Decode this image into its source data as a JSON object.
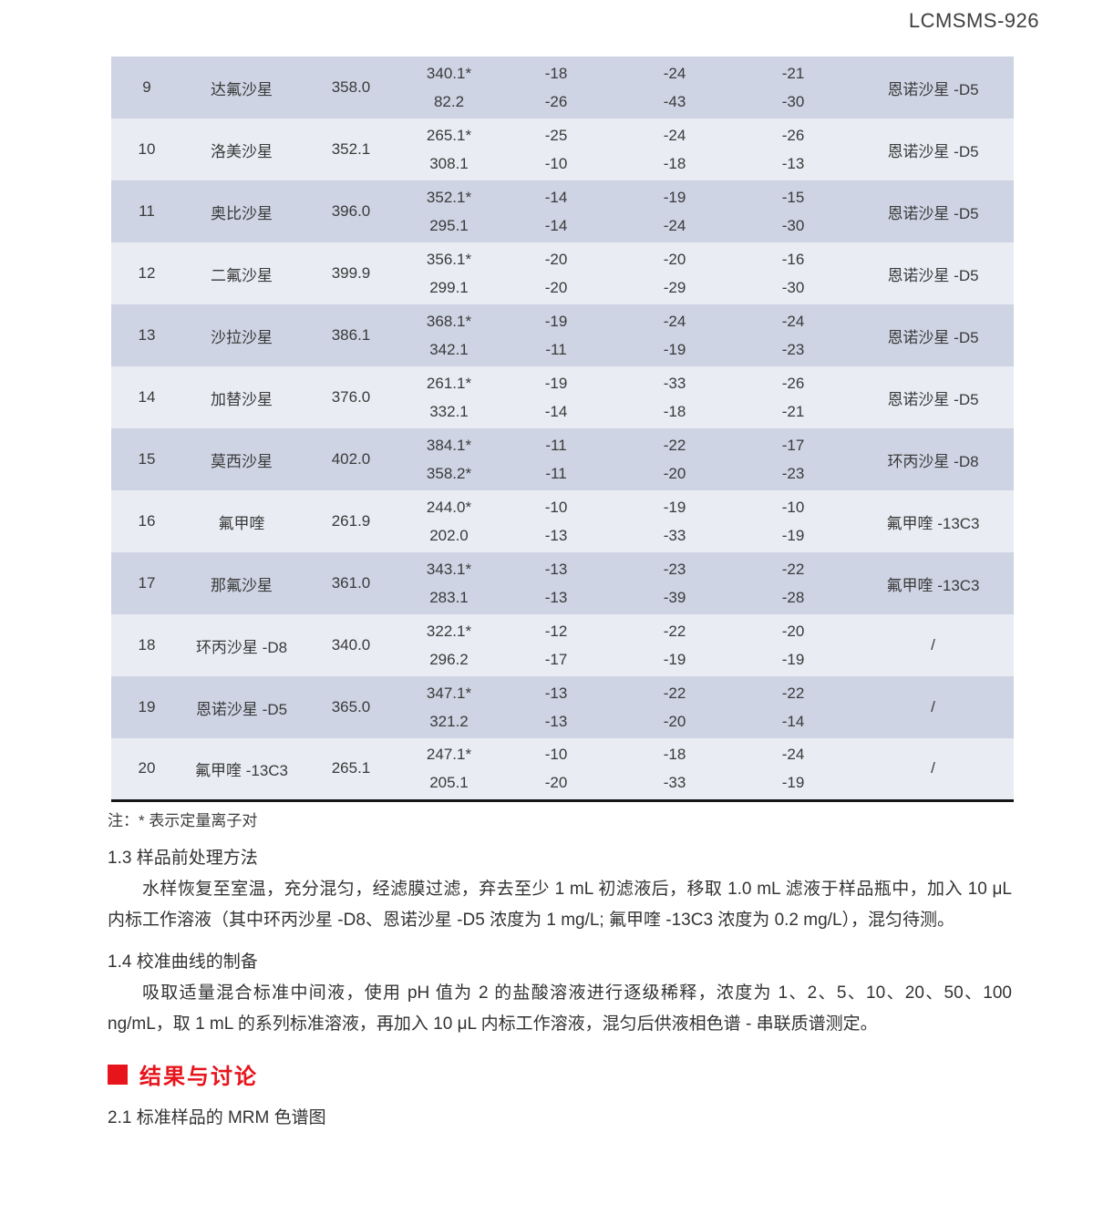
{
  "header": {
    "doc_code": "LCMSMS-926"
  },
  "table": {
    "rows": [
      {
        "no": "9",
        "name": "达氟沙星",
        "precursor": "358.0",
        "ions": [
          "340.1*",
          "82.2"
        ],
        "v1": [
          "-18",
          "-26"
        ],
        "v2": [
          "-24",
          "-43"
        ],
        "v3": [
          "-21",
          "-30"
        ],
        "internal_standard": "恩诺沙星 -D5"
      },
      {
        "no": "10",
        "name": "洛美沙星",
        "precursor": "352.1",
        "ions": [
          "265.1*",
          "308.1"
        ],
        "v1": [
          "-25",
          "-10"
        ],
        "v2": [
          "-24",
          "-18"
        ],
        "v3": [
          "-26",
          "-13"
        ],
        "internal_standard": "恩诺沙星 -D5"
      },
      {
        "no": "11",
        "name": "奥比沙星",
        "precursor": "396.0",
        "ions": [
          "352.1*",
          "295.1"
        ],
        "v1": [
          "-14",
          "-14"
        ],
        "v2": [
          "-19",
          "-24"
        ],
        "v3": [
          "-15",
          "-30"
        ],
        "internal_standard": "恩诺沙星 -D5"
      },
      {
        "no": "12",
        "name": "二氟沙星",
        "precursor": "399.9",
        "ions": [
          "356.1*",
          "299.1"
        ],
        "v1": [
          "-20",
          "-20"
        ],
        "v2": [
          "-20",
          "-29"
        ],
        "v3": [
          "-16",
          "-30"
        ],
        "internal_standard": "恩诺沙星 -D5"
      },
      {
        "no": "13",
        "name": "沙拉沙星",
        "precursor": "386.1",
        "ions": [
          "368.1*",
          "342.1"
        ],
        "v1": [
          "-19",
          "-11"
        ],
        "v2": [
          "-24",
          "-19"
        ],
        "v3": [
          "-24",
          "-23"
        ],
        "internal_standard": "恩诺沙星 -D5"
      },
      {
        "no": "14",
        "name": "加替沙星",
        "precursor": "376.0",
        "ions": [
          "261.1*",
          "332.1"
        ],
        "v1": [
          "-19",
          "-14"
        ],
        "v2": [
          "-33",
          "-18"
        ],
        "v3": [
          "-26",
          "-21"
        ],
        "internal_standard": "恩诺沙星 -D5"
      },
      {
        "no": "15",
        "name": "莫西沙星",
        "precursor": "402.0",
        "ions": [
          "384.1*",
          "358.2*"
        ],
        "v1": [
          "-11",
          "-11"
        ],
        "v2": [
          "-22",
          "-20"
        ],
        "v3": [
          "-17",
          "-23"
        ],
        "internal_standard": "环丙沙星 -D8"
      },
      {
        "no": "16",
        "name": "氟甲喹",
        "precursor": "261.9",
        "ions": [
          "244.0*",
          "202.0"
        ],
        "v1": [
          "-10",
          "-13"
        ],
        "v2": [
          "-19",
          "-33"
        ],
        "v3": [
          "-10",
          "-19"
        ],
        "internal_standard": "氟甲喹 -13C3"
      },
      {
        "no": "17",
        "name": "那氟沙星",
        "precursor": "361.0",
        "ions": [
          "343.1*",
          "283.1"
        ],
        "v1": [
          "-13",
          "-13"
        ],
        "v2": [
          "-23",
          "-39"
        ],
        "v3": [
          "-22",
          "-28"
        ],
        "internal_standard": "氟甲喹 -13C3"
      },
      {
        "no": "18",
        "name": "环丙沙星 -D8",
        "precursor": "340.0",
        "ions": [
          "322.1*",
          "296.2"
        ],
        "v1": [
          "-12",
          "-17"
        ],
        "v2": [
          "-22",
          "-19"
        ],
        "v3": [
          "-20",
          "-19"
        ],
        "internal_standard": "/"
      },
      {
        "no": "19",
        "name": "恩诺沙星 -D5",
        "precursor": "365.0",
        "ions": [
          "347.1*",
          "321.2"
        ],
        "v1": [
          "-13",
          "-13"
        ],
        "v2": [
          "-22",
          "-20"
        ],
        "v3": [
          "-22",
          "-14"
        ],
        "internal_standard": "/"
      },
      {
        "no": "20",
        "name": "氟甲喹 -13C3",
        "precursor": "265.1",
        "ions": [
          "247.1*",
          "205.1"
        ],
        "v1": [
          "-10",
          "-20"
        ],
        "v2": [
          "-18",
          "-33"
        ],
        "v3": [
          "-24",
          "-19"
        ],
        "internal_standard": "/"
      }
    ],
    "note": "注：* 表示定量离子对"
  },
  "sections": [
    {
      "heading": "1.3 样品前处理方法",
      "paragraphs": [
        "水样恢复至室温，充分混匀，经滤膜过滤，弃去至少 1 mL 初滤液后，移取 1.0 mL 滤液于样品瓶中，加入 10 μL 内标工作溶液（其中环丙沙星 -D8、恩诺沙星 -D5 浓度为 1 mg/L; 氟甲喹 -13C3 浓度为 0.2 mg/L），混匀待测。"
      ]
    },
    {
      "heading": "1.4 校准曲线的制备",
      "paragraphs": [
        "吸取适量混合标准中间液，使用 pH 值为 2 的盐酸溶液进行逐级稀释，浓度为 1、2、5、10、20、50、100 ng/mL，取 1 mL 的系列标准溶液，再加入 10 μL 内标工作溶液，混匀后供液相色谱 - 串联质谱测定。"
      ]
    }
  ],
  "results": {
    "heading": "结果与讨论",
    "subsection": "2.1 标准样品的 MRM 色谱图"
  },
  "colors": {
    "accent_red": "#e8141c",
    "row_dark": "#ced4e4",
    "row_light": "#e9ecf3",
    "text": "#333333",
    "table_border": "#161616"
  }
}
